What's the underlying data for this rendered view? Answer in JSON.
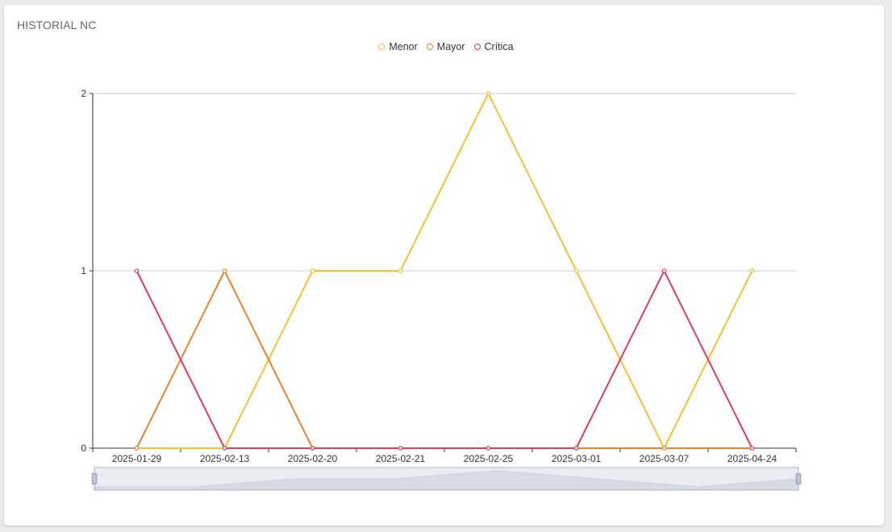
{
  "card": {
    "title": "HISTORIAL NC"
  },
  "colors": {
    "Menor": "#f2c134",
    "Mayor": "#e8822e",
    "Critica": "#dc3d5d",
    "grid": "#cccccc",
    "axis": "#333333",
    "slider_fill": "#d8dde8",
    "slider_shadow": "#c4cbd8",
    "slider_handle": "#a9b6cc"
  },
  "chart_data": {
    "type": "line",
    "title": "",
    "xlabel": "",
    "ylabel": "",
    "categories": [
      "2025-01-29",
      "2025-02-13",
      "2025-02-20",
      "2025-02-21",
      "2025-02-25",
      "2025-03-01",
      "2025-03-07",
      "2025-04-24"
    ],
    "ylim": [
      0,
      2
    ],
    "yticks": [
      0,
      1,
      2
    ],
    "grid": true,
    "legend_position": "top-center",
    "series": [
      {
        "name": "Menor",
        "values": [
          0,
          0,
          1,
          1,
          2,
          1,
          0,
          1
        ]
      },
      {
        "name": "Mayor",
        "values": [
          0,
          1,
          0,
          0,
          0,
          0,
          0,
          0
        ]
      },
      {
        "name": "Crítica",
        "values": [
          1,
          0,
          0,
          0,
          0,
          0,
          1,
          0
        ]
      }
    ],
    "data_zoom": {
      "start_percent": 0,
      "end_percent": 100
    }
  }
}
